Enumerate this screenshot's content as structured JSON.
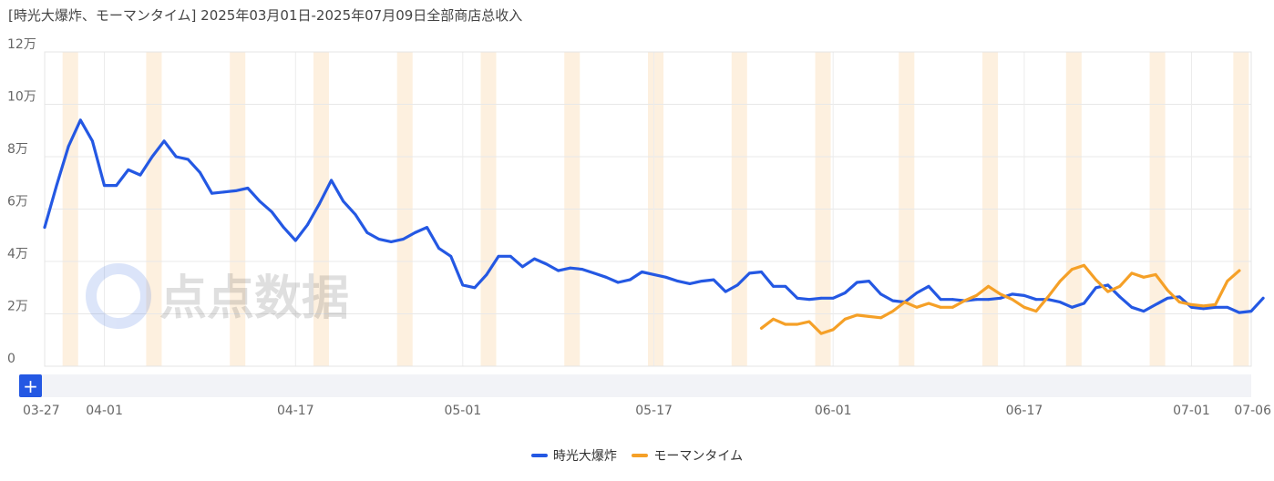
{
  "title": "[時光大爆炸、モーマンタイム] 2025年03月01日-2025年07月09日全部商店总收入",
  "watermark": "点点数据",
  "zoom": {
    "icon": "plus-icon",
    "symbol": "+"
  },
  "legend": [
    {
      "name": "時光大爆炸",
      "color": "#2458e3"
    },
    {
      "name": "モーマンタイム",
      "color": "#f5a027"
    }
  ],
  "chart_data": {
    "type": "line",
    "title": "[時光大爆炸、モーマンタイム] 2025年03月01日-2025年07月09日全部商店总收入",
    "x_start": "2025-03-27",
    "x_end": "2025-07-06",
    "x_tick_labels": [
      {
        "date": "2025-03-27",
        "label": "03-27"
      },
      {
        "date": "2025-04-01",
        "label": "04-01"
      },
      {
        "date": "2025-04-17",
        "label": "04-17"
      },
      {
        "date": "2025-05-01",
        "label": "05-01"
      },
      {
        "date": "2025-05-17",
        "label": "05-17"
      },
      {
        "date": "2025-06-01",
        "label": "06-01"
      },
      {
        "date": "2025-06-17",
        "label": "06-17"
      },
      {
        "date": "2025-07-01",
        "label": "07-01"
      },
      {
        "date": "2025-07-06",
        "label": "07-06"
      }
    ],
    "y_ticks": [
      {
        "value": 0,
        "label": "0"
      },
      {
        "value": 20000,
        "label": "2万"
      },
      {
        "value": 40000,
        "label": "4万"
      },
      {
        "value": 60000,
        "label": "6万"
      },
      {
        "value": 80000,
        "label": "8万"
      },
      {
        "value": 100000,
        "label": "10万"
      },
      {
        "value": 120000,
        "label": "12万"
      }
    ],
    "ylim": [
      0,
      120000
    ],
    "grid": true,
    "weekend_bands": [
      "2025-03-29",
      "2025-04-05",
      "2025-04-12",
      "2025-04-19",
      "2025-04-26",
      "2025-05-03",
      "2025-05-10",
      "2025-05-17",
      "2025-05-24",
      "2025-05-31",
      "2025-06-07",
      "2025-06-14",
      "2025-06-21",
      "2025-06-28",
      "2025-07-05"
    ],
    "series": [
      {
        "name": "時光大爆炸",
        "color": "#2458e3",
        "start_date": "2025-03-27",
        "values": [
          53000,
          69000,
          84000,
          94000,
          86000,
          69000,
          69000,
          75000,
          73000,
          80000,
          86000,
          80000,
          79000,
          74000,
          66000,
          66500,
          67000,
          68000,
          63000,
          59000,
          53000,
          48000,
          54000,
          62000,
          71000,
          63000,
          58000,
          51000,
          48500,
          47500,
          48500,
          51000,
          53000,
          45000,
          42000,
          31000,
          30000,
          35000,
          42000,
          42000,
          38000,
          41000,
          39000,
          36500,
          37500,
          37000,
          35500,
          34000,
          32000,
          33000,
          36000,
          35000,
          34000,
          32500,
          31500,
          32500,
          33000,
          28500,
          31000,
          35500,
          36000,
          30500,
          30500,
          26000,
          25500,
          26000,
          26000,
          28000,
          32000,
          32500,
          27500,
          25000,
          24500,
          28000,
          30500,
          25500,
          25500,
          25000,
          25500,
          25500,
          26000,
          27500,
          27000,
          25500,
          25500,
          24500,
          22500,
          24000,
          30000,
          31000,
          26500,
          22500,
          21000,
          23500,
          26000,
          26500,
          22500,
          22000,
          22500,
          22500,
          20500,
          21000,
          26000
        ]
      },
      {
        "name": "モーマンタイム",
        "color": "#f5a027",
        "start_date": "2025-05-26",
        "values": [
          14500,
          18000,
          16000,
          16000,
          17000,
          12500,
          14000,
          18000,
          19500,
          19000,
          18500,
          21000,
          24500,
          22500,
          24000,
          22500,
          22500,
          25000,
          27000,
          30500,
          27500,
          25500,
          22500,
          21000,
          26500,
          32500,
          37000,
          38500,
          33000,
          28500,
          30500,
          35500,
          34000,
          35000,
          29000,
          24500,
          23500,
          23000,
          23500,
          32500,
          36500
        ]
      }
    ]
  }
}
